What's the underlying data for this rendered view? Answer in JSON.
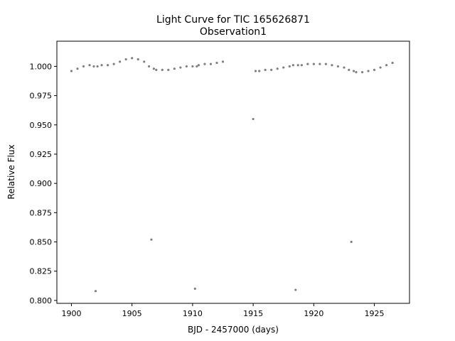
{
  "chart_data": {
    "type": "scatter",
    "title": "Light Curve for TIC 165626871",
    "subtitle": "Observation1",
    "xlabel": "BJD - 2457000 (days)",
    "ylabel": "Relative Flux",
    "xlim": [
      1898.8,
      1927.9
    ],
    "ylim": [
      0.7975,
      1.0215
    ],
    "xticks": [
      1900,
      1905,
      1910,
      1915,
      1920,
      1925
    ],
    "yticks": [
      0.8,
      0.825,
      0.85,
      0.875,
      0.9,
      0.925,
      0.95,
      0.975,
      1.0
    ],
    "ytick_labels": [
      "0.800",
      "0.825",
      "0.850",
      "0.875",
      "0.900",
      "0.925",
      "0.950",
      "0.975",
      "1.000"
    ],
    "grid": false,
    "marker_color": "#808080",
    "series": [
      {
        "x": [
          1900.0,
          1900.5,
          1901.0,
          1901.5,
          1901.85,
          1902.0,
          1902.15,
          1902.5,
          1903.0,
          1903.5,
          1904.0,
          1904.5,
          1905.0,
          1905.5,
          1906.0,
          1906.4,
          1906.6,
          1906.8,
          1907.0,
          1907.5,
          1908.0,
          1908.5,
          1909.0,
          1909.5,
          1910.0,
          1910.2,
          1910.35,
          1910.5,
          1911.0,
          1911.5,
          1912.0,
          1912.5,
          1915.0,
          1915.2,
          1915.5,
          1916.0,
          1916.5,
          1917.0,
          1917.5,
          1918.0,
          1918.3,
          1918.5,
          1918.7,
          1919.0,
          1919.5,
          1920.0,
          1920.5,
          1921.0,
          1921.5,
          1922.0,
          1922.5,
          1922.9,
          1923.1,
          1923.3,
          1923.5,
          1924.0,
          1924.5,
          1925.0,
          1925.5,
          1926.0,
          1926.5
        ],
        "y": [
          0.996,
          0.998,
          1.0,
          1.001,
          1.0,
          0.808,
          1.0,
          1.001,
          1.001,
          1.002,
          1.004,
          1.006,
          1.007,
          1.006,
          1.004,
          1.0,
          0.852,
          0.998,
          0.997,
          0.997,
          0.997,
          0.998,
          0.999,
          1.0,
          1.0,
          0.81,
          1.0,
          1.001,
          1.002,
          1.002,
          1.003,
          1.004,
          0.955,
          0.996,
          0.996,
          0.997,
          0.997,
          0.998,
          0.999,
          1.0,
          1.001,
          0.809,
          1.001,
          1.001,
          1.002,
          1.002,
          1.002,
          1.002,
          1.001,
          1.0,
          0.999,
          0.997,
          0.85,
          0.996,
          0.995,
          0.995,
          0.996,
          0.997,
          0.999,
          1.001,
          1.003
        ]
      }
    ]
  }
}
